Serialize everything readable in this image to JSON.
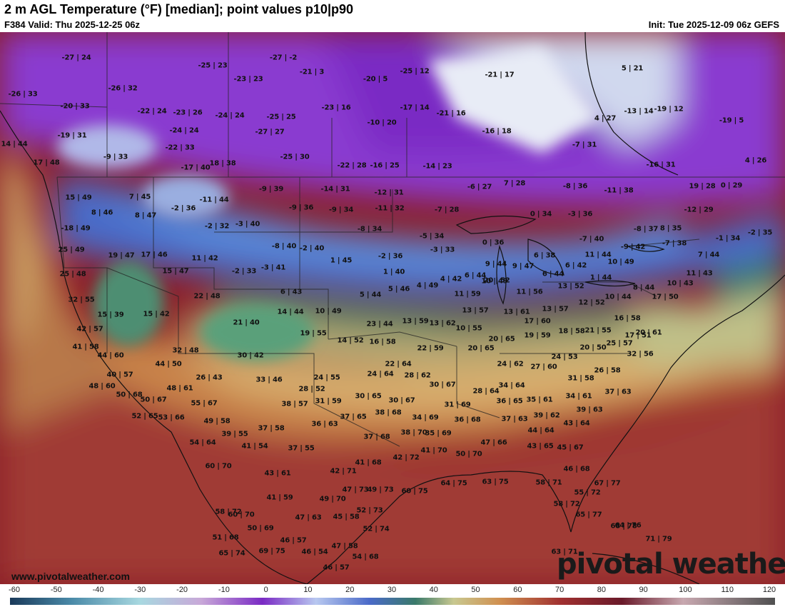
{
  "header": {
    "title": "2 m AGL Temperature (°F) [median]; point values p10|p90",
    "valid": "F384 Valid: Thu 2025-12-25 06z",
    "init": "Init: Tue 2025-12-09 06z GEFS"
  },
  "watermark": {
    "site": "www.pivotalweather.com",
    "brand": "pivotal weather"
  },
  "colorbar": {
    "min": -60,
    "max": 120,
    "step": 10,
    "labels": [
      "-60",
      "-50",
      "-40",
      "-30",
      "-20",
      "-10",
      "0",
      "10",
      "20",
      "30",
      "40",
      "50",
      "60",
      "70",
      "80",
      "90",
      "100",
      "110",
      "120"
    ]
  },
  "point_values": [
    "-27 | 24",
    "-27 | -2",
    "-25 | 23",
    "-21 | 3",
    "-25 | 12",
    "-21 | 17",
    "-23 | 23",
    "5 | 21",
    "-26 | 33",
    "-26 | 32",
    "-20 | 5",
    "-20 | 33",
    "-22 | 24",
    "-23 | 26",
    "-24 | 24",
    "-25 | 25",
    "-23 | 16",
    "-17 | 14",
    "-21 | 16",
    "-13 | 14",
    "-19 | 12",
    "-19 | 5",
    "-19 | 31",
    "-24 | 24",
    "-27 | 27",
    "-10 | 20",
    "4 | 27",
    "-16 | 18",
    "-7 | 31",
    "14 | 44",
    "-22 | 33",
    "-9 | 33",
    "-25 | 30",
    "17 | 48",
    "-17 | 40",
    "18 | 38",
    "-22 | 28",
    "-16 | 25",
    "-14 | 23",
    "-16 | 31",
    "4 | 26",
    "-6 | 27",
    "7 | 28",
    "-8 | 36",
    "-11 | 38",
    "19 | 28",
    "0 | 29",
    "15 | 49",
    "7 | 45",
    "-11 | 44",
    "-9 | 39",
    "-14 | 31",
    "-12 | 31",
    "-9 | 36",
    "-9 | 34",
    "-11 | 32",
    "-7 | 28",
    "0 | 34",
    "-12 | 29",
    "8 | 46",
    "8 | 47",
    "-2 | 36",
    "-2 | 32",
    "-3 | 40",
    "-8 | 34",
    "-3 | 36",
    "-8 | 37",
    "8 | 35",
    "-18 | 49",
    "-5 | 34",
    "-7 | 40",
    "-1 | 34",
    "-2 | 35",
    "25 | 49",
    "-8 | 40",
    "-2 | 40",
    "0 | 36",
    "-3 | 33",
    "-9 | 42",
    "-7 | 38",
    "19 | 47",
    "17 | 46",
    "11 | 42",
    "-2 | 36",
    "1 | 45",
    "6 | 38",
    "11 | 44",
    "7 | 44",
    "25 | 48",
    "15 | 47",
    "-2 | 33",
    "-3 | 41",
    "1 | 40",
    "9 | 44",
    "9 | 47",
    "10 | 49",
    "6 | 44",
    "6 | 42",
    "11 | 43",
    "4 | 49",
    "4 | 42",
    "6 | 44",
    "10 | 49",
    "1 | 44",
    "32 | 55",
    "22 | 48",
    "6 | 43",
    "5 | 44",
    "5 | 46",
    "11 | 59",
    "20 | 52",
    "11 | 56",
    "13 | 52",
    "8 | 44",
    "10 | 43",
    "15 | 39",
    "15 | 42",
    "14 | 44",
    "10 | 49",
    "13 | 57",
    "13 | 61",
    "13 | 57",
    "12 | 52",
    "10 | 44",
    "17 | 50",
    "42 | 57",
    "21 | 40",
    "13 | 59",
    "13 | 62",
    "17 | 60",
    "16 | 58",
    "19 | 55",
    "23 | 44",
    "10 | 55",
    "18 | 58",
    "21 | 55",
    "17 | 51",
    "20 | 61",
    "41 | 58",
    "14 | 52",
    "16 | 58",
    "20 | 65",
    "19 | 59",
    "25 | 57",
    "32 | 48",
    "22 | 59",
    "20 | 50",
    "44 | 60",
    "30 | 42",
    "20 | 65",
    "24 | 53",
    "32 | 56",
    "44 | 50",
    "22 | 64",
    "24 | 62",
    "27 | 60",
    "26 | 58",
    "40 | 57",
    "26 | 43",
    "24 | 64",
    "28 | 62",
    "30 | 67",
    "31 | 58",
    "48 | 60",
    "33 | 46",
    "24 | 55",
    "34 | 64",
    "37 | 63",
    "48 | 61",
    "28 | 52",
    "30 | 65",
    "30 | 67",
    "28 | 64",
    "34 | 61",
    "50 | 68",
    "50 | 67",
    "55 | 67",
    "38 | 57",
    "31 | 59",
    "31 | 69",
    "36 | 65",
    "35 | 61",
    "39 | 63",
    "52 | 65",
    "53 | 66",
    "37 | 65",
    "38 | 68",
    "34 | 69",
    "36 | 68",
    "37 | 63",
    "39 | 62",
    "49 | 58",
    "36 | 63",
    "44 | 64",
    "39 | 55",
    "37 | 58",
    "37 | 68",
    "38 | 70",
    "35 | 69",
    "43 | 64",
    "54 | 64",
    "41 | 54",
    "37 | 55",
    "47 | 66",
    "43 | 65",
    "45 | 67",
    "41 | 68",
    "42 | 72",
    "41 | 70",
    "50 | 70",
    "60 | 70",
    "43 | 61",
    "46 | 68",
    "42 | 71",
    "64 | 75",
    "63 | 75",
    "58 | 71",
    "58 | 72",
    "47 | 73",
    "49 | 73",
    "60 | 75",
    "55 | 72",
    "41 | 59",
    "49 | 70",
    "58 | 72",
    "67 | 77",
    "60 | 70",
    "52 | 73",
    "65 | 77",
    "47 | 63",
    "45 | 58",
    "64 | 76",
    "50 | 69",
    "52 | 74",
    "68 | 78",
    "51 | 68",
    "46 | 57",
    "71 | 79",
    "47 | 58",
    "69 | 75",
    "46 | 54",
    "54 | 68",
    "65 | 74",
    "63 | 71",
    "46 | 57"
  ]
}
